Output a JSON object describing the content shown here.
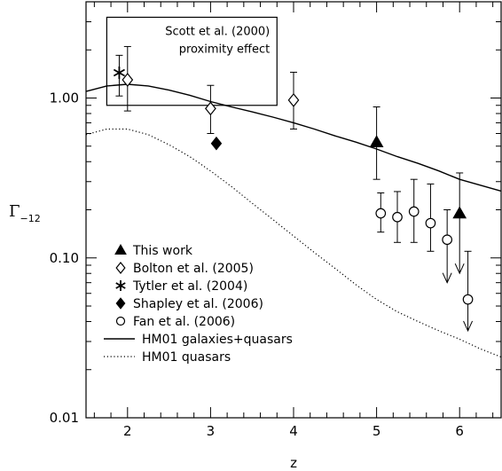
{
  "chart_data": {
    "type": "scatter",
    "xlabel": "z",
    "ylabel_main": "Γ",
    "ylabel_sub": "−12",
    "xlim": [
      1.5,
      6.5
    ],
    "ylim": [
      0.01,
      4
    ],
    "yscale": "log",
    "xticks": [
      2,
      3,
      4,
      5,
      6
    ],
    "xtick_labels": [
      "2",
      "3",
      "4",
      "5",
      "6"
    ],
    "yticks": [
      0.01,
      0.1,
      1.0
    ],
    "ytick_labels": [
      "0.01",
      "0.10",
      "1.00"
    ],
    "grid": false,
    "legend_position": "lower-left",
    "box_annotation": {
      "line1": "Scott et al. (2000)",
      "line2": "proximity effect",
      "x_range": [
        1.75,
        3.8
      ],
      "y_range": [
        0.9,
        3.2
      ]
    },
    "series": [
      {
        "name": "This work",
        "marker": "filled-triangle",
        "points": [
          {
            "x": 5.0,
            "y": 0.53,
            "lo": 0.31,
            "hi": 0.88
          },
          {
            "x": 6.0,
            "y": 0.19,
            "lo": 0.08,
            "hi": 0.34,
            "upper_limit": true
          }
        ]
      },
      {
        "name": "Bolton et al. (2005)",
        "marker": "open-diamond",
        "points": [
          {
            "x": 2.0,
            "y": 1.3,
            "lo": 0.83,
            "hi": 2.1
          },
          {
            "x": 3.0,
            "y": 0.86,
            "lo": 0.6,
            "hi": 1.2
          },
          {
            "x": 4.0,
            "y": 0.97,
            "lo": 0.64,
            "hi": 1.45
          }
        ]
      },
      {
        "name": "Tytler et al. (2004)",
        "marker": "asterisk",
        "points": [
          {
            "x": 1.9,
            "y": 1.44,
            "lo": 1.03,
            "hi": 1.85
          }
        ]
      },
      {
        "name": "Shapley et al. (2006)",
        "marker": "filled-diamond",
        "points": [
          {
            "x": 3.07,
            "y": 0.52
          }
        ]
      },
      {
        "name": "Fan et al. (2006)",
        "marker": "open-circle",
        "points": [
          {
            "x": 5.05,
            "y": 0.19,
            "lo": 0.145,
            "hi": 0.255
          },
          {
            "x": 5.25,
            "y": 0.18,
            "lo": 0.125,
            "hi": 0.26
          },
          {
            "x": 5.45,
            "y": 0.195,
            "lo": 0.125,
            "hi": 0.31
          },
          {
            "x": 5.65,
            "y": 0.165,
            "lo": 0.11,
            "hi": 0.29
          },
          {
            "x": 5.85,
            "y": 0.13,
            "lo": 0.07,
            "hi": 0.2,
            "upper_limit": true
          },
          {
            "x": 6.1,
            "y": 0.055,
            "lo": 0.035,
            "hi": 0.11,
            "upper_limit": true
          }
        ]
      }
    ],
    "curves": [
      {
        "name": "HM01 galaxies+quasars",
        "style": "solid",
        "x": [
          1.5,
          1.75,
          2.0,
          2.25,
          2.5,
          2.75,
          3.0,
          3.25,
          3.5,
          3.75,
          4.0,
          4.25,
          4.5,
          4.75,
          5.0,
          5.25,
          5.5,
          5.75,
          6.0,
          6.25,
          6.5
        ],
        "y": [
          1.1,
          1.19,
          1.22,
          1.19,
          1.12,
          1.04,
          0.95,
          0.88,
          0.82,
          0.76,
          0.7,
          0.64,
          0.58,
          0.53,
          0.48,
          0.43,
          0.39,
          0.35,
          0.31,
          0.285,
          0.262
        ]
      },
      {
        "name": "HM01 quasars",
        "style": "dotted",
        "x": [
          1.5,
          1.75,
          2.0,
          2.25,
          2.5,
          2.75,
          3.0,
          3.25,
          3.5,
          3.75,
          4.0,
          4.25,
          4.5,
          4.75,
          5.0,
          5.25,
          5.5,
          5.75,
          6.0,
          6.25,
          6.5
        ],
        "y": [
          0.59,
          0.64,
          0.64,
          0.59,
          0.51,
          0.43,
          0.35,
          0.28,
          0.22,
          0.174,
          0.137,
          0.108,
          0.086,
          0.068,
          0.055,
          0.046,
          0.04,
          0.035,
          0.031,
          0.027,
          0.024
        ]
      }
    ]
  }
}
